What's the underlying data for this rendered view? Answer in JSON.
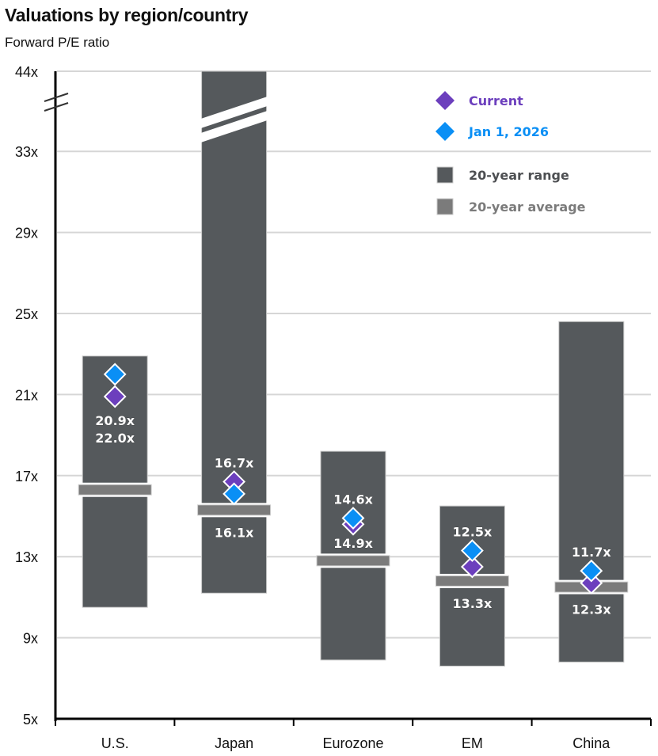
{
  "chart_data": {
    "type": "bar",
    "subtype": "floating-range-with-markers",
    "title": "Valuations by region/country",
    "subtitle": "Forward P/E ratio",
    "xlabel": "",
    "ylabel": "Forward P/E ratio",
    "ylim": [
      5,
      44
    ],
    "axis_break": {
      "from": 33,
      "to": 44
    },
    "yticks": [
      5,
      9,
      13,
      17,
      21,
      25,
      29,
      33,
      44
    ],
    "ytick_labels": [
      "5x",
      "9x",
      "13x",
      "17x",
      "21x",
      "25x",
      "29x",
      "33x",
      "44x"
    ],
    "grid": true,
    "legend_position": "top-right",
    "categories": [
      "U.S.",
      "Japan",
      "Eurozone",
      "EM",
      "China"
    ],
    "series": [
      {
        "name": "20-year range",
        "kind": "range",
        "color": "#55595c",
        "low": [
          10.5,
          11.2,
          7.9,
          7.6,
          7.8
        ],
        "high": [
          22.9,
          44,
          18.2,
          15.5,
          24.6
        ],
        "broken_top": [
          false,
          true,
          false,
          false,
          false
        ]
      },
      {
        "name": "20-year average",
        "kind": "band",
        "color": "#7b7b7b",
        "values": [
          16.3,
          15.3,
          12.8,
          11.8,
          11.5
        ]
      },
      {
        "name": "Current",
        "kind": "marker",
        "color": "#6c3fbd",
        "values": [
          20.9,
          16.7,
          14.6,
          12.5,
          11.7
        ],
        "labels": [
          "20.9x",
          "16.7x",
          "14.6x",
          "12.5x",
          "11.7x"
        ]
      },
      {
        "name": "Jan 1, 2026",
        "kind": "marker",
        "color": "#0a8ff5",
        "values": [
          22.0,
          16.1,
          14.9,
          13.3,
          12.3
        ],
        "labels": [
          "22.0x",
          "16.1x",
          "14.9x",
          "13.3x",
          "12.3x"
        ]
      }
    ],
    "legend": [
      {
        "label": "Current",
        "symbol": "diamond",
        "color": "#6c3fbd"
      },
      {
        "label": "Jan 1, 2026",
        "symbol": "diamond",
        "color": "#0a8ff5"
      },
      {
        "label": "20-year range",
        "symbol": "square",
        "color": "#55595c"
      },
      {
        "label": "20-year average",
        "symbol": "square",
        "color": "#7b7b7b"
      }
    ]
  }
}
